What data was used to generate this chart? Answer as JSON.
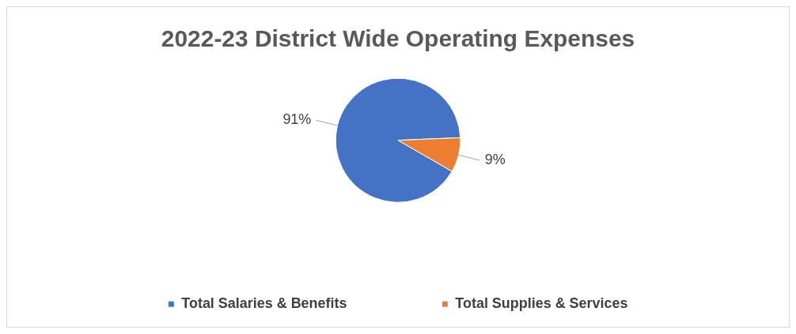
{
  "chart_data": {
    "type": "pie",
    "title": "2022-23 District Wide Operating Expenses",
    "categories": [
      "Total Salaries & Benefits",
      "Total Supplies & Services"
    ],
    "values": [
      91,
      9
    ],
    "colors": [
      "#4472c4",
      "#ed7d31"
    ],
    "value_labels": [
      "91%",
      "9%"
    ],
    "legend": "bottom"
  }
}
